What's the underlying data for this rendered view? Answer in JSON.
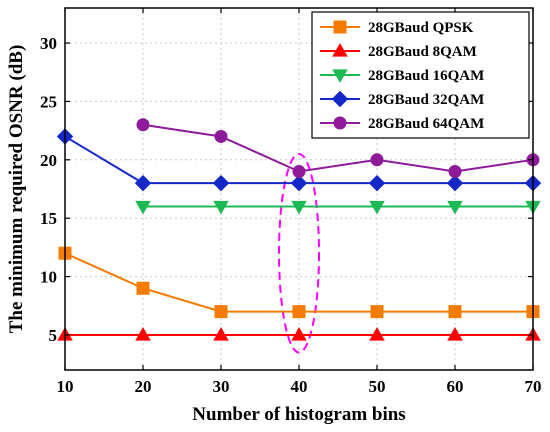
{
  "chart_data": {
    "type": "line",
    "title": "",
    "xlabel": "Number of histogram bins",
    "ylabel": "The minimum required OSNR (dB)",
    "xlim": [
      10,
      70
    ],
    "ylim": [
      2,
      33
    ],
    "xticks": [
      10,
      20,
      30,
      40,
      50,
      60,
      70
    ],
    "yticks": [
      5,
      10,
      15,
      20,
      25,
      30
    ],
    "grid": true,
    "legend_position": "top-right",
    "series": [
      {
        "name": "28GBaud QPSK",
        "color": "#f57c00",
        "marker": "square",
        "x": [
          10,
          20,
          30,
          40,
          50,
          60,
          70
        ],
        "y": [
          12,
          9,
          7,
          7,
          7,
          7,
          7
        ]
      },
      {
        "name": "28GBaud 8QAM",
        "color": "#ff0000",
        "marker": "triangle-up",
        "x": [
          10,
          20,
          30,
          40,
          50,
          60,
          70
        ],
        "y": [
          5,
          5,
          5,
          5,
          5,
          5,
          5
        ]
      },
      {
        "name": "28GBaud 16QAM",
        "color": "#1db954",
        "marker": "triangle-down",
        "x": [
          20,
          30,
          40,
          50,
          60,
          70
        ],
        "y": [
          16,
          16,
          16,
          16,
          16,
          16
        ]
      },
      {
        "name": "28GBaud 32QAM",
        "color": "#1428c8",
        "marker": "diamond",
        "x": [
          10,
          20,
          30,
          40,
          50,
          60,
          70
        ],
        "y": [
          22,
          18,
          18,
          18,
          18,
          18,
          18
        ]
      },
      {
        "name": "28GBaud 64QAM",
        "color": "#8e1a9a",
        "marker": "circle",
        "x": [
          20,
          30,
          40,
          50,
          60,
          70
        ],
        "y": [
          23,
          22,
          19,
          20,
          19,
          20
        ]
      }
    ],
    "annotations": [
      {
        "type": "dashed-ellipse",
        "color": "#ff00ff",
        "x": 40,
        "y_range": [
          3.5,
          20.5
        ]
      }
    ]
  }
}
